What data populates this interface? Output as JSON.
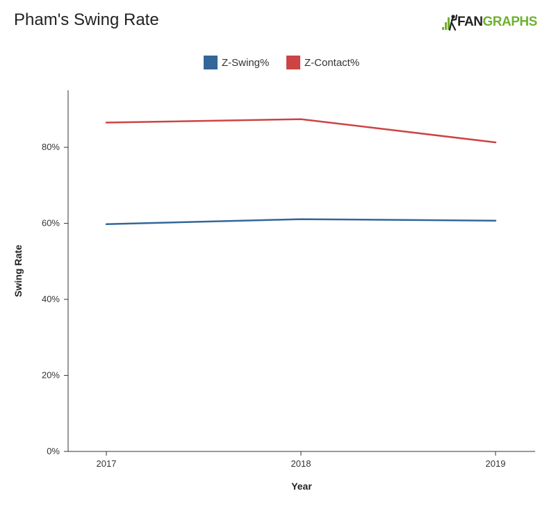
{
  "chart_data": {
    "type": "line",
    "title": "Pham's Swing Rate",
    "xlabel": "Year",
    "ylabel": "Swing Rate",
    "x": [
      "2017",
      "2018",
      "2019"
    ],
    "ylim": [
      0,
      95
    ],
    "yticks": [
      0,
      20,
      40,
      60,
      80
    ],
    "ytick_labels": [
      "0%",
      "20%",
      "40%",
      "60%",
      "80%"
    ],
    "grid": false,
    "legend_position": "top-center",
    "series": [
      {
        "name": "Z-Swing%",
        "color": "#336699",
        "values": [
          59.8,
          61.1,
          60.7
        ]
      },
      {
        "name": "Z-Contact%",
        "color": "#cc4444",
        "values": [
          86.5,
          87.4,
          81.3
        ]
      }
    ]
  },
  "logo": {
    "part1": "FAN",
    "part2": "GRAPHS",
    "icon": "fangraphs-batter-icon"
  }
}
